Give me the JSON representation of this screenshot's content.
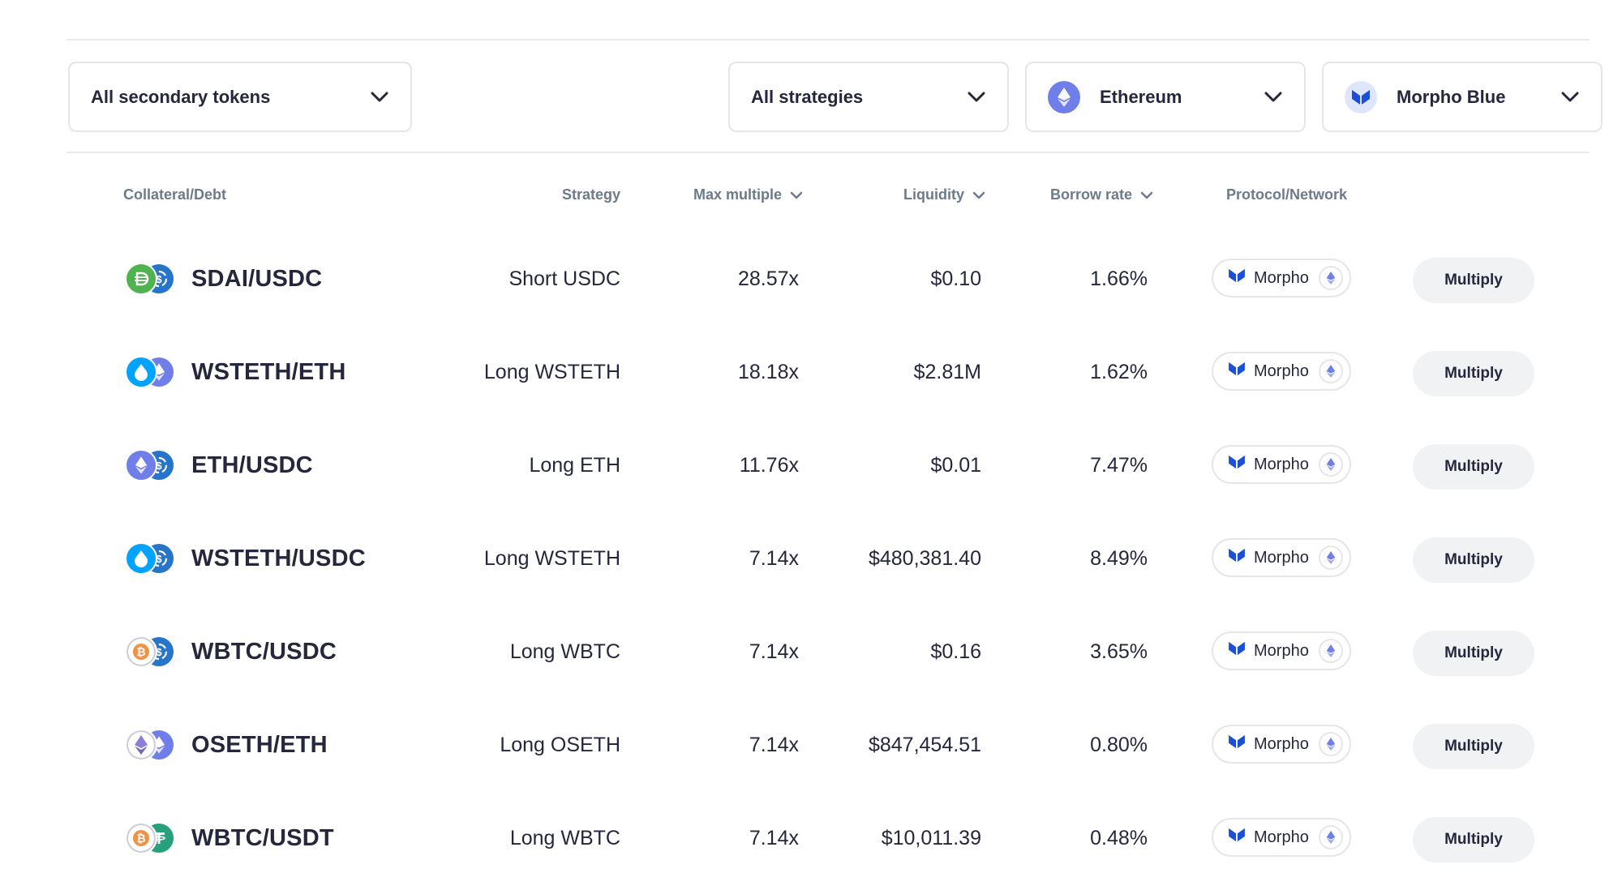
{
  "filters": {
    "secondary_tokens": "All secondary tokens",
    "strategies": "All strategies",
    "network": {
      "label": "Ethereum",
      "icon": "ethereum-icon"
    },
    "protocol": {
      "label": "Morpho Blue",
      "icon": "morpho-icon"
    }
  },
  "table": {
    "headers": {
      "collateral_debt": "Collateral/Debt",
      "strategy": "Strategy",
      "max_multiple": "Max multiple",
      "liquidity": "Liquidity",
      "borrow_rate": "Borrow rate",
      "protocol_network": "Protocol/Network"
    },
    "rows": [
      {
        "pair": "SDAI/USDC",
        "collateral_icon": "sdai-icon",
        "debt_icon": "usdc-icon",
        "strategy": "Short USDC",
        "max_multiple": "28.57x",
        "liquidity": "$0.10",
        "borrow_rate": "1.66%",
        "protocol": "Morpho",
        "network_icon": "ethereum-icon",
        "action": "Multiply"
      },
      {
        "pair": "WSTETH/ETH",
        "collateral_icon": "wsteth-icon",
        "debt_icon": "eth-icon",
        "strategy": "Long WSTETH",
        "max_multiple": "18.18x",
        "liquidity": "$2.81M",
        "borrow_rate": "1.62%",
        "protocol": "Morpho",
        "network_icon": "ethereum-icon",
        "action": "Multiply"
      },
      {
        "pair": "ETH/USDC",
        "collateral_icon": "eth-icon",
        "debt_icon": "usdc-icon",
        "strategy": "Long ETH",
        "max_multiple": "11.76x",
        "liquidity": "$0.01",
        "borrow_rate": "7.47%",
        "protocol": "Morpho",
        "network_icon": "ethereum-icon",
        "action": "Multiply"
      },
      {
        "pair": "WSTETH/USDC",
        "collateral_icon": "wsteth-icon",
        "debt_icon": "usdc-icon",
        "strategy": "Long WSTETH",
        "max_multiple": "7.14x",
        "liquidity": "$480,381.40",
        "borrow_rate": "8.49%",
        "protocol": "Morpho",
        "network_icon": "ethereum-icon",
        "action": "Multiply"
      },
      {
        "pair": "WBTC/USDC",
        "collateral_icon": "wbtc-icon",
        "debt_icon": "usdc-icon",
        "strategy": "Long WBTC",
        "max_multiple": "7.14x",
        "liquidity": "$0.16",
        "borrow_rate": "3.65%",
        "protocol": "Morpho",
        "network_icon": "ethereum-icon",
        "action": "Multiply"
      },
      {
        "pair": "OSETH/ETH",
        "collateral_icon": "oseth-icon",
        "debt_icon": "eth-icon",
        "strategy": "Long OSETH",
        "max_multiple": "7.14x",
        "liquidity": "$847,454.51",
        "borrow_rate": "0.80%",
        "protocol": "Morpho",
        "network_icon": "ethereum-icon",
        "action": "Multiply"
      },
      {
        "pair": "WBTC/USDT",
        "collateral_icon": "wbtc-icon",
        "debt_icon": "usdt-icon",
        "strategy": "Long WBTC",
        "max_multiple": "7.14x",
        "liquidity": "$10,011.39",
        "borrow_rate": "0.48%",
        "protocol": "Morpho",
        "network_icon": "ethereum-icon",
        "action": "Multiply"
      }
    ]
  },
  "colors": {
    "text": "#25273d",
    "header_text": "#6c7a8a",
    "border": "#e6e6e6",
    "button_bg": "#f1f2f4",
    "eth": "#6f7ee8",
    "usdc": "#2775ca",
    "sdai": "#4fb34f",
    "wsteth": "#00a3ff",
    "wbtc": "#f09242",
    "usdt": "#26a17b",
    "morpho": "#1a4fd6"
  }
}
